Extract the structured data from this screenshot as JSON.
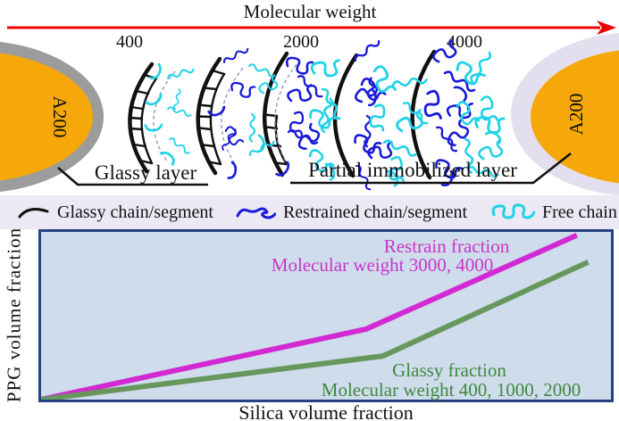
{
  "diagram": {
    "title": "Molecular weight",
    "mw_labels": [
      "400",
      "2000",
      "4000"
    ],
    "left_particle_label": "A200",
    "right_particle_label": "A200",
    "glassy_layer_label": "Glassy layer",
    "partial_layer_label": "Partial immobilized layer",
    "colors": {
      "arrow": "#ee0000",
      "silica_particle": "#f6a80a",
      "glassy_ring": "#9c9c9c",
      "partial_ring": "#e3dfee",
      "glassy_chain": "#111111",
      "restrained_chain": "#1a1ada",
      "free_chain": "#1fd2e6"
    }
  },
  "legend": {
    "items": [
      {
        "icon": "glassy-chain-icon",
        "label": "Glassy chain/segment",
        "color": "#111111"
      },
      {
        "icon": "restrained-chain-icon",
        "label": "Restrained chain/segment",
        "color": "#1a1ada"
      },
      {
        "icon": "free-chain-icon",
        "label": "Free chain",
        "color": "#1fd2e6"
      }
    ]
  },
  "chart_data": {
    "type": "line",
    "title": "",
    "xlabel": "Silica volume fraction",
    "ylabel": "PPG volume fraction",
    "xlim": [
      0,
      1
    ],
    "ylim": [
      0,
      1
    ],
    "grid": false,
    "plot_bg": "#cfdcec",
    "border_color": "#26437f",
    "series": [
      {
        "name": "Restrain fraction",
        "annotation": [
          "Restrain fraction",
          "Molecular weight 3000, 4000"
        ],
        "color": "#d229d2",
        "x": [
          0,
          0.57,
          0.94
        ],
        "y": [
          0,
          0.42,
          0.98
        ]
      },
      {
        "name": "Glassy fraction",
        "annotation": [
          "Glassy fraction",
          "Molecular weight 400, 1000, 2000"
        ],
        "color": "#68975e",
        "x": [
          0,
          0.6,
          0.96
        ],
        "y": [
          0,
          0.26,
          0.82
        ]
      }
    ]
  }
}
